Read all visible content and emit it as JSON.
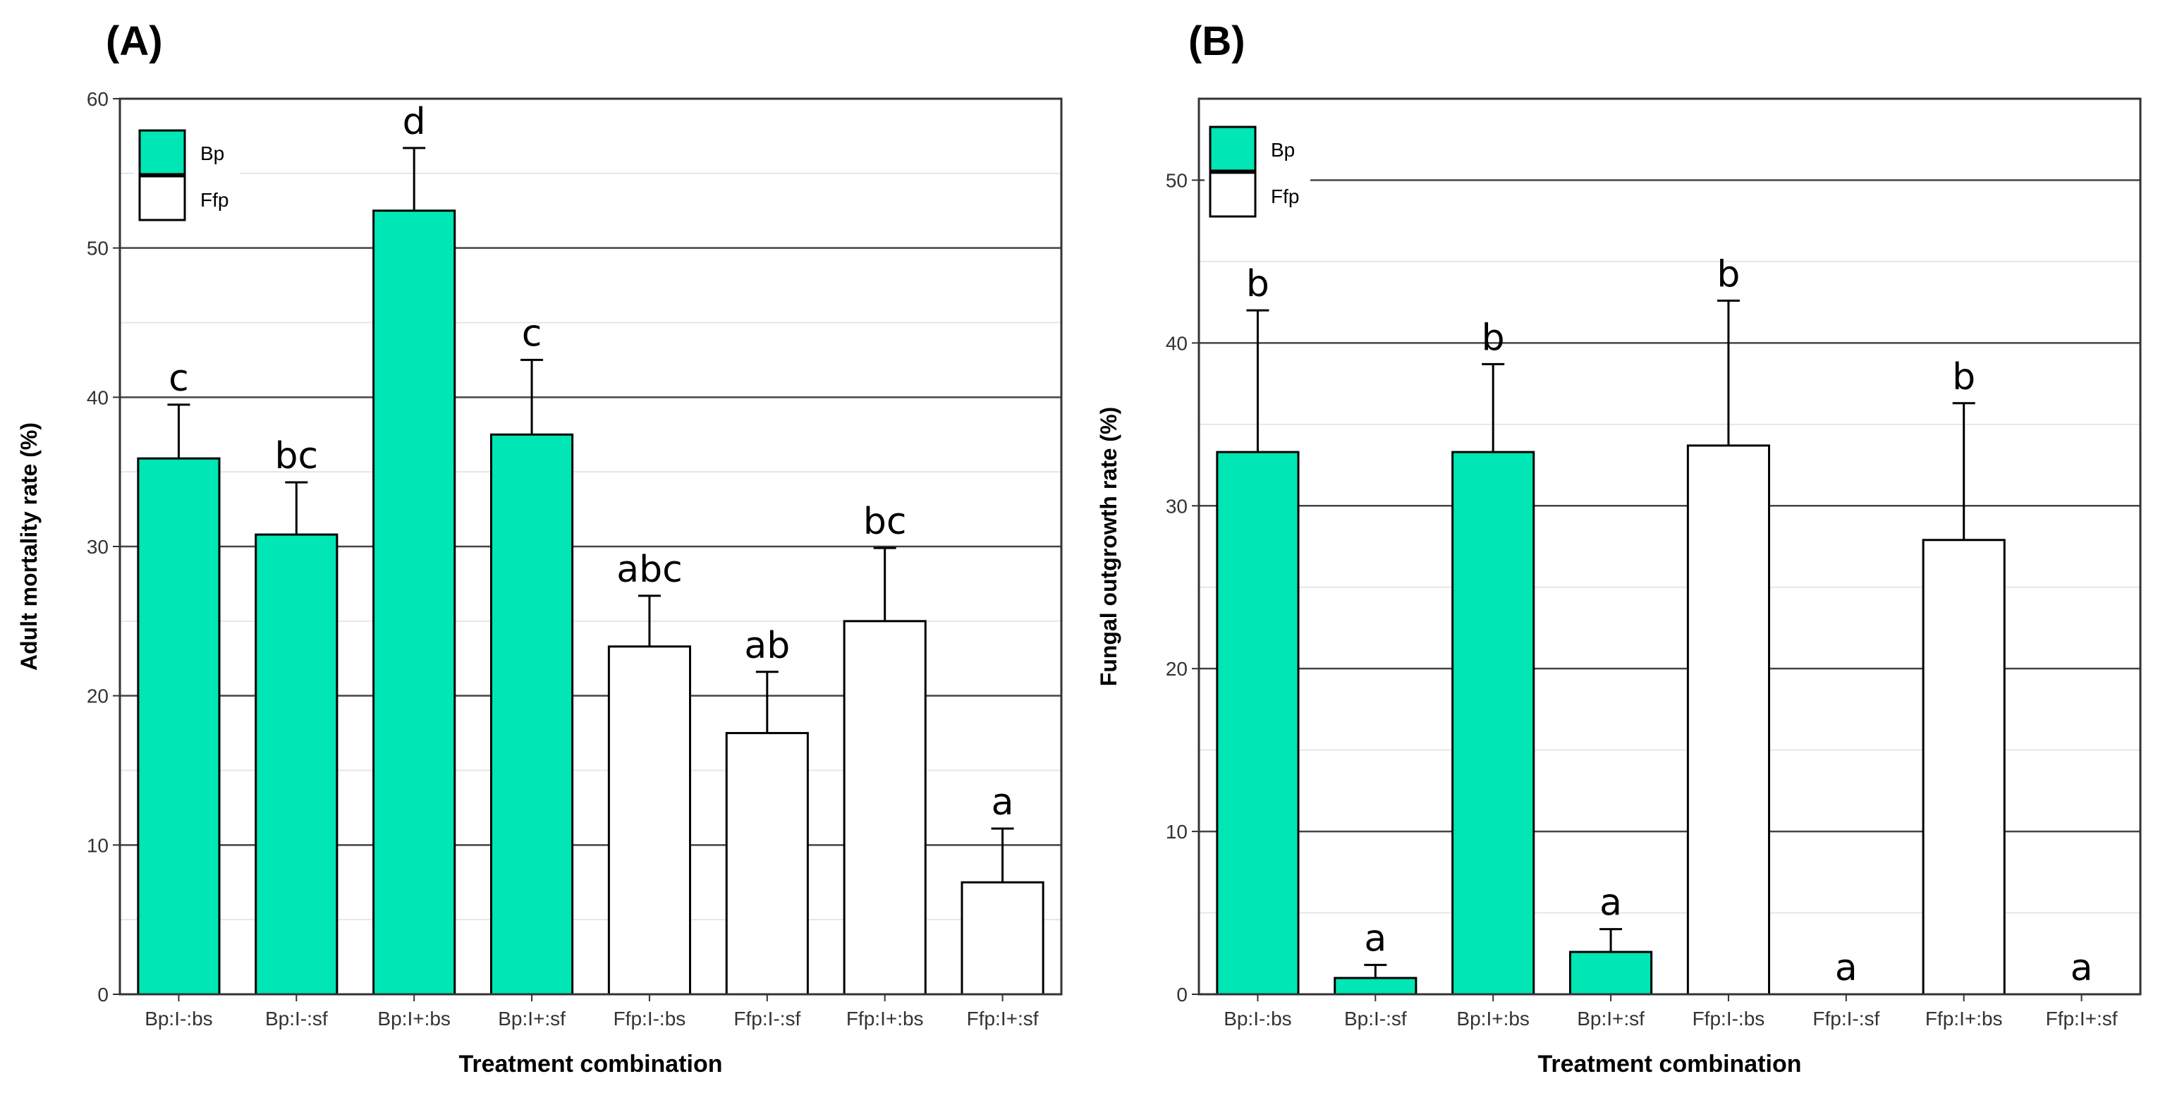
{
  "colors": {
    "bp": "#00E6B4",
    "ffp": "#FFFFFF",
    "stroke": "#000000",
    "gridMajor": "#444444",
    "gridMinor": "#E6E6E6"
  },
  "chart_data": [
    {
      "type": "bar",
      "panel_label": "(A)",
      "categories": [
        "Bp:I-:bs",
        "Bp:I-:sf",
        "Bp:I+:bs",
        "Bp:I+:sf",
        "Ffp:I-:bs",
        "Ffp:I-:sf",
        "Ffp:I+:bs",
        "Ffp:I+:sf"
      ],
      "values": [
        35.9,
        30.8,
        52.5,
        37.5,
        23.3,
        17.5,
        25.0,
        7.5
      ],
      "errors": [
        3.6,
        3.5,
        4.2,
        5.0,
        3.4,
        4.1,
        4.9,
        3.6
      ],
      "groups": [
        "Bp",
        "Bp",
        "Bp",
        "Bp",
        "Ffp",
        "Ffp",
        "Ffp",
        "Ffp"
      ],
      "letters": [
        "c",
        "bc",
        "d",
        "c",
        "abc",
        "ab",
        "bc",
        "a"
      ],
      "xlabel": "Treatment combination",
      "ylabel": "Adult mortality rate (%)",
      "ylim": [
        0,
        60
      ],
      "yticks": [
        0,
        10,
        20,
        30,
        40,
        50,
        60
      ],
      "legend": [
        "Bp",
        "Ffp"
      ],
      "legend_position": "top-left"
    },
    {
      "type": "bar",
      "panel_label": "(B)",
      "categories": [
        "Bp:I-:bs",
        "Bp:I-:sf",
        "Bp:I+:bs",
        "Bp:I+:sf",
        "Ffp:I-:bs",
        "Ffp:I-:sf",
        "Ffp:I+:bs",
        "Ffp:I+:sf"
      ],
      "values": [
        33.3,
        1.0,
        33.3,
        2.6,
        33.7,
        0,
        27.9,
        0
      ],
      "errors": [
        8.7,
        0.8,
        5.4,
        1.4,
        8.9,
        0,
        8.4,
        0
      ],
      "groups": [
        "Bp",
        "Bp",
        "Bp",
        "Bp",
        "Ffp",
        "Ffp",
        "Ffp",
        "Ffp"
      ],
      "letters": [
        "b",
        "a",
        "b",
        "a",
        "b",
        "a",
        "b",
        "a"
      ],
      "xlabel": "Treatment combination",
      "ylabel": "Fungal outgrowth rate (%)",
      "ylim": [
        0,
        55
      ],
      "yticks": [
        0,
        10,
        20,
        30,
        40,
        50
      ],
      "legend": [
        "Bp",
        "Ffp"
      ],
      "legend_position": "top-left"
    }
  ]
}
